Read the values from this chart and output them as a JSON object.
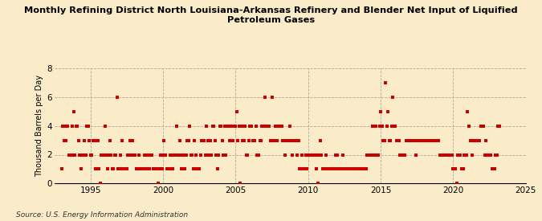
{
  "title": "Monthly Refining District North Louisiana-Arkansas Refinery and Blender Net Input of Liquified\nPetroleum Gases",
  "ylabel": "Thousand Barrels per Day",
  "source": "Source: U.S. Energy Information Administration",
  "background_color": "#faecc8",
  "dot_color": "#cc0000",
  "xlim": [
    1992.5,
    2024.5
  ],
  "ylim": [
    0,
    8
  ],
  "yticks": [
    0,
    2,
    4,
    6,
    8
  ],
  "xticks": [
    1995,
    2000,
    2005,
    2010,
    2015,
    2020,
    2025
  ],
  "data": {
    "dates": [
      1993.0,
      1993.08,
      1993.17,
      1993.25,
      1993.33,
      1993.42,
      1993.5,
      1993.58,
      1993.67,
      1993.75,
      1993.83,
      1993.92,
      1994.0,
      1994.08,
      1994.17,
      1994.25,
      1994.33,
      1994.42,
      1994.5,
      1994.58,
      1994.67,
      1994.75,
      1994.83,
      1994.92,
      1995.0,
      1995.08,
      1995.17,
      1995.25,
      1995.33,
      1995.42,
      1995.5,
      1995.58,
      1995.67,
      1995.75,
      1995.83,
      1995.92,
      1996.0,
      1996.08,
      1996.17,
      1996.25,
      1996.33,
      1996.42,
      1996.5,
      1996.58,
      1996.67,
      1996.75,
      1996.83,
      1996.92,
      1997.0,
      1997.08,
      1997.17,
      1997.25,
      1997.33,
      1997.42,
      1997.5,
      1997.58,
      1997.67,
      1997.75,
      1997.83,
      1997.92,
      1998.0,
      1998.08,
      1998.17,
      1998.25,
      1998.33,
      1998.42,
      1998.5,
      1998.58,
      1998.67,
      1998.75,
      1998.83,
      1998.92,
      1999.0,
      1999.08,
      1999.17,
      1999.25,
      1999.33,
      1999.42,
      1999.5,
      1999.58,
      1999.67,
      1999.75,
      1999.83,
      1999.92,
      2000.0,
      2000.08,
      2000.17,
      2000.25,
      2000.33,
      2000.42,
      2000.5,
      2000.58,
      2000.67,
      2000.75,
      2000.83,
      2000.92,
      2001.0,
      2001.08,
      2001.17,
      2001.25,
      2001.33,
      2001.42,
      2001.5,
      2001.58,
      2001.67,
      2001.75,
      2001.83,
      2001.92,
      2002.0,
      2002.08,
      2002.17,
      2002.25,
      2002.33,
      2002.42,
      2002.5,
      2002.58,
      2002.67,
      2002.75,
      2002.83,
      2002.92,
      2003.0,
      2003.08,
      2003.17,
      2003.25,
      2003.33,
      2003.42,
      2003.5,
      2003.58,
      2003.67,
      2003.75,
      2003.83,
      2003.92,
      2004.0,
      2004.08,
      2004.17,
      2004.25,
      2004.33,
      2004.42,
      2004.5,
      2004.58,
      2004.67,
      2004.75,
      2004.83,
      2004.92,
      2005.0,
      2005.08,
      2005.17,
      2005.25,
      2005.33,
      2005.42,
      2005.5,
      2005.58,
      2005.67,
      2005.75,
      2005.83,
      2005.92,
      2006.0,
      2006.08,
      2006.17,
      2006.25,
      2006.33,
      2006.42,
      2006.5,
      2006.58,
      2006.67,
      2006.75,
      2006.83,
      2006.92,
      2007.0,
      2007.08,
      2007.17,
      2007.25,
      2007.33,
      2007.42,
      2007.5,
      2007.58,
      2007.67,
      2007.75,
      2007.83,
      2007.92,
      2008.0,
      2008.08,
      2008.17,
      2008.25,
      2008.33,
      2008.42,
      2008.5,
      2008.58,
      2008.67,
      2008.75,
      2008.83,
      2008.92,
      2009.0,
      2009.08,
      2009.17,
      2009.25,
      2009.33,
      2009.42,
      2009.5,
      2009.58,
      2009.67,
      2009.75,
      2009.83,
      2009.92,
      2010.0,
      2010.08,
      2010.17,
      2010.25,
      2010.33,
      2010.42,
      2010.5,
      2010.58,
      2010.67,
      2010.75,
      2010.83,
      2010.92,
      2011.0,
      2011.08,
      2011.17,
      2011.25,
      2011.33,
      2011.42,
      2011.5,
      2011.58,
      2011.67,
      2011.75,
      2011.83,
      2011.92,
      2012.0,
      2012.08,
      2012.17,
      2012.25,
      2012.33,
      2012.42,
      2012.5,
      2012.58,
      2012.67,
      2012.75,
      2012.83,
      2012.92,
      2013.0,
      2013.08,
      2013.17,
      2013.25,
      2013.33,
      2013.42,
      2013.5,
      2013.58,
      2013.67,
      2013.75,
      2013.83,
      2013.92,
      2014.0,
      2014.08,
      2014.17,
      2014.25,
      2014.33,
      2014.42,
      2014.5,
      2014.58,
      2014.67,
      2014.75,
      2014.83,
      2014.92,
      2015.0,
      2015.08,
      2015.17,
      2015.25,
      2015.33,
      2015.42,
      2015.5,
      2015.58,
      2015.67,
      2015.75,
      2015.83,
      2015.92,
      2016.0,
      2016.08,
      2016.17,
      2016.25,
      2016.33,
      2016.42,
      2016.5,
      2016.58,
      2016.67,
      2016.75,
      2016.83,
      2016.92,
      2017.0,
      2017.08,
      2017.17,
      2017.25,
      2017.33,
      2017.42,
      2017.5,
      2017.58,
      2017.67,
      2017.75,
      2017.83,
      2017.92,
      2018.0,
      2018.08,
      2018.17,
      2018.25,
      2018.33,
      2018.42,
      2018.5,
      2018.58,
      2018.67,
      2018.75,
      2018.83,
      2018.92,
      2019.0,
      2019.08,
      2019.17,
      2019.25,
      2019.33,
      2019.42,
      2019.5,
      2019.58,
      2019.67,
      2019.75,
      2019.83,
      2019.92,
      2020.0,
      2020.08,
      2020.17,
      2020.25,
      2020.33,
      2020.42,
      2020.5,
      2020.58,
      2020.67,
      2020.75,
      2020.83,
      2020.92,
      2021.0,
      2021.08,
      2021.17,
      2021.25,
      2021.33,
      2021.42,
      2021.5,
      2021.58,
      2021.67,
      2021.75,
      2021.83,
      2021.92,
      2022.0,
      2022.08,
      2022.17,
      2022.25,
      2022.33,
      2022.42,
      2022.5,
      2022.58,
      2022.67,
      2022.75,
      2022.83,
      2022.92,
      2023.0,
      2023.08,
      2023.17
    ],
    "values": [
      1,
      4,
      3,
      4,
      3,
      4,
      2,
      2,
      2,
      4,
      5,
      2,
      4,
      4,
      3,
      2,
      1,
      2,
      2,
      3,
      2,
      4,
      4,
      3,
      2,
      2,
      3,
      3,
      1,
      3,
      3,
      1,
      0,
      2,
      2,
      2,
      4,
      2,
      1,
      2,
      3,
      2,
      1,
      1,
      2,
      2,
      6,
      1,
      1,
      2,
      3,
      1,
      1,
      1,
      1,
      2,
      2,
      3,
      2,
      3,
      2,
      2,
      1,
      1,
      2,
      1,
      1,
      1,
      1,
      2,
      1,
      2,
      2,
      1,
      2,
      2,
      1,
      1,
      1,
      1,
      0,
      1,
      2,
      1,
      2,
      3,
      2,
      1,
      1,
      1,
      2,
      2,
      1,
      2,
      2,
      4,
      2,
      2,
      3,
      1,
      2,
      2,
      1,
      2,
      3,
      3,
      4,
      2,
      2,
      1,
      3,
      2,
      1,
      1,
      1,
      2,
      3,
      3,
      3,
      2,
      4,
      3,
      2,
      3,
      2,
      4,
      4,
      3,
      2,
      1,
      2,
      4,
      4,
      3,
      2,
      4,
      2,
      4,
      4,
      3,
      4,
      4,
      3,
      4,
      4,
      5,
      3,
      4,
      0,
      4,
      3,
      3,
      4,
      2,
      2,
      3,
      4,
      4,
      3,
      3,
      3,
      4,
      2,
      2,
      3,
      3,
      4,
      4,
      6,
      4,
      4,
      4,
      4,
      3,
      6,
      3,
      3,
      4,
      3,
      4,
      4,
      4,
      4,
      3,
      3,
      2,
      3,
      3,
      3,
      4,
      3,
      2,
      3,
      3,
      3,
      2,
      3,
      1,
      1,
      2,
      1,
      1,
      2,
      1,
      2,
      2,
      2,
      2,
      2,
      2,
      2,
      1,
      0,
      2,
      3,
      2,
      1,
      1,
      1,
      2,
      1,
      1,
      1,
      1,
      1,
      1,
      1,
      2,
      2,
      1,
      1,
      1,
      1,
      2,
      1,
      1,
      1,
      1,
      1,
      1,
      1,
      1,
      1,
      1,
      1,
      1,
      1,
      1,
      1,
      1,
      1,
      1,
      1,
      2,
      2,
      2,
      2,
      4,
      2,
      2,
      4,
      2,
      2,
      4,
      5,
      4,
      3,
      3,
      7,
      4,
      5,
      3,
      3,
      4,
      6,
      4,
      4,
      3,
      3,
      3,
      2,
      2,
      2,
      2,
      2,
      3,
      3,
      3,
      3,
      3,
      3,
      3,
      3,
      2,
      3,
      3,
      3,
      3,
      3,
      3,
      3,
      3,
      3,
      3,
      3,
      3,
      3,
      3,
      3,
      3,
      3,
      3,
      3,
      2,
      2,
      2,
      2,
      2,
      2,
      2,
      2,
      2,
      2,
      2,
      1,
      1,
      1,
      0,
      2,
      2,
      2,
      1,
      1,
      2,
      2,
      2,
      5,
      4,
      3,
      3,
      2,
      3,
      3,
      3,
      3,
      3,
      3,
      4,
      4,
      4,
      2,
      3,
      2,
      2,
      2,
      2,
      1,
      1,
      1,
      2,
      2,
      4,
      4
    ]
  }
}
